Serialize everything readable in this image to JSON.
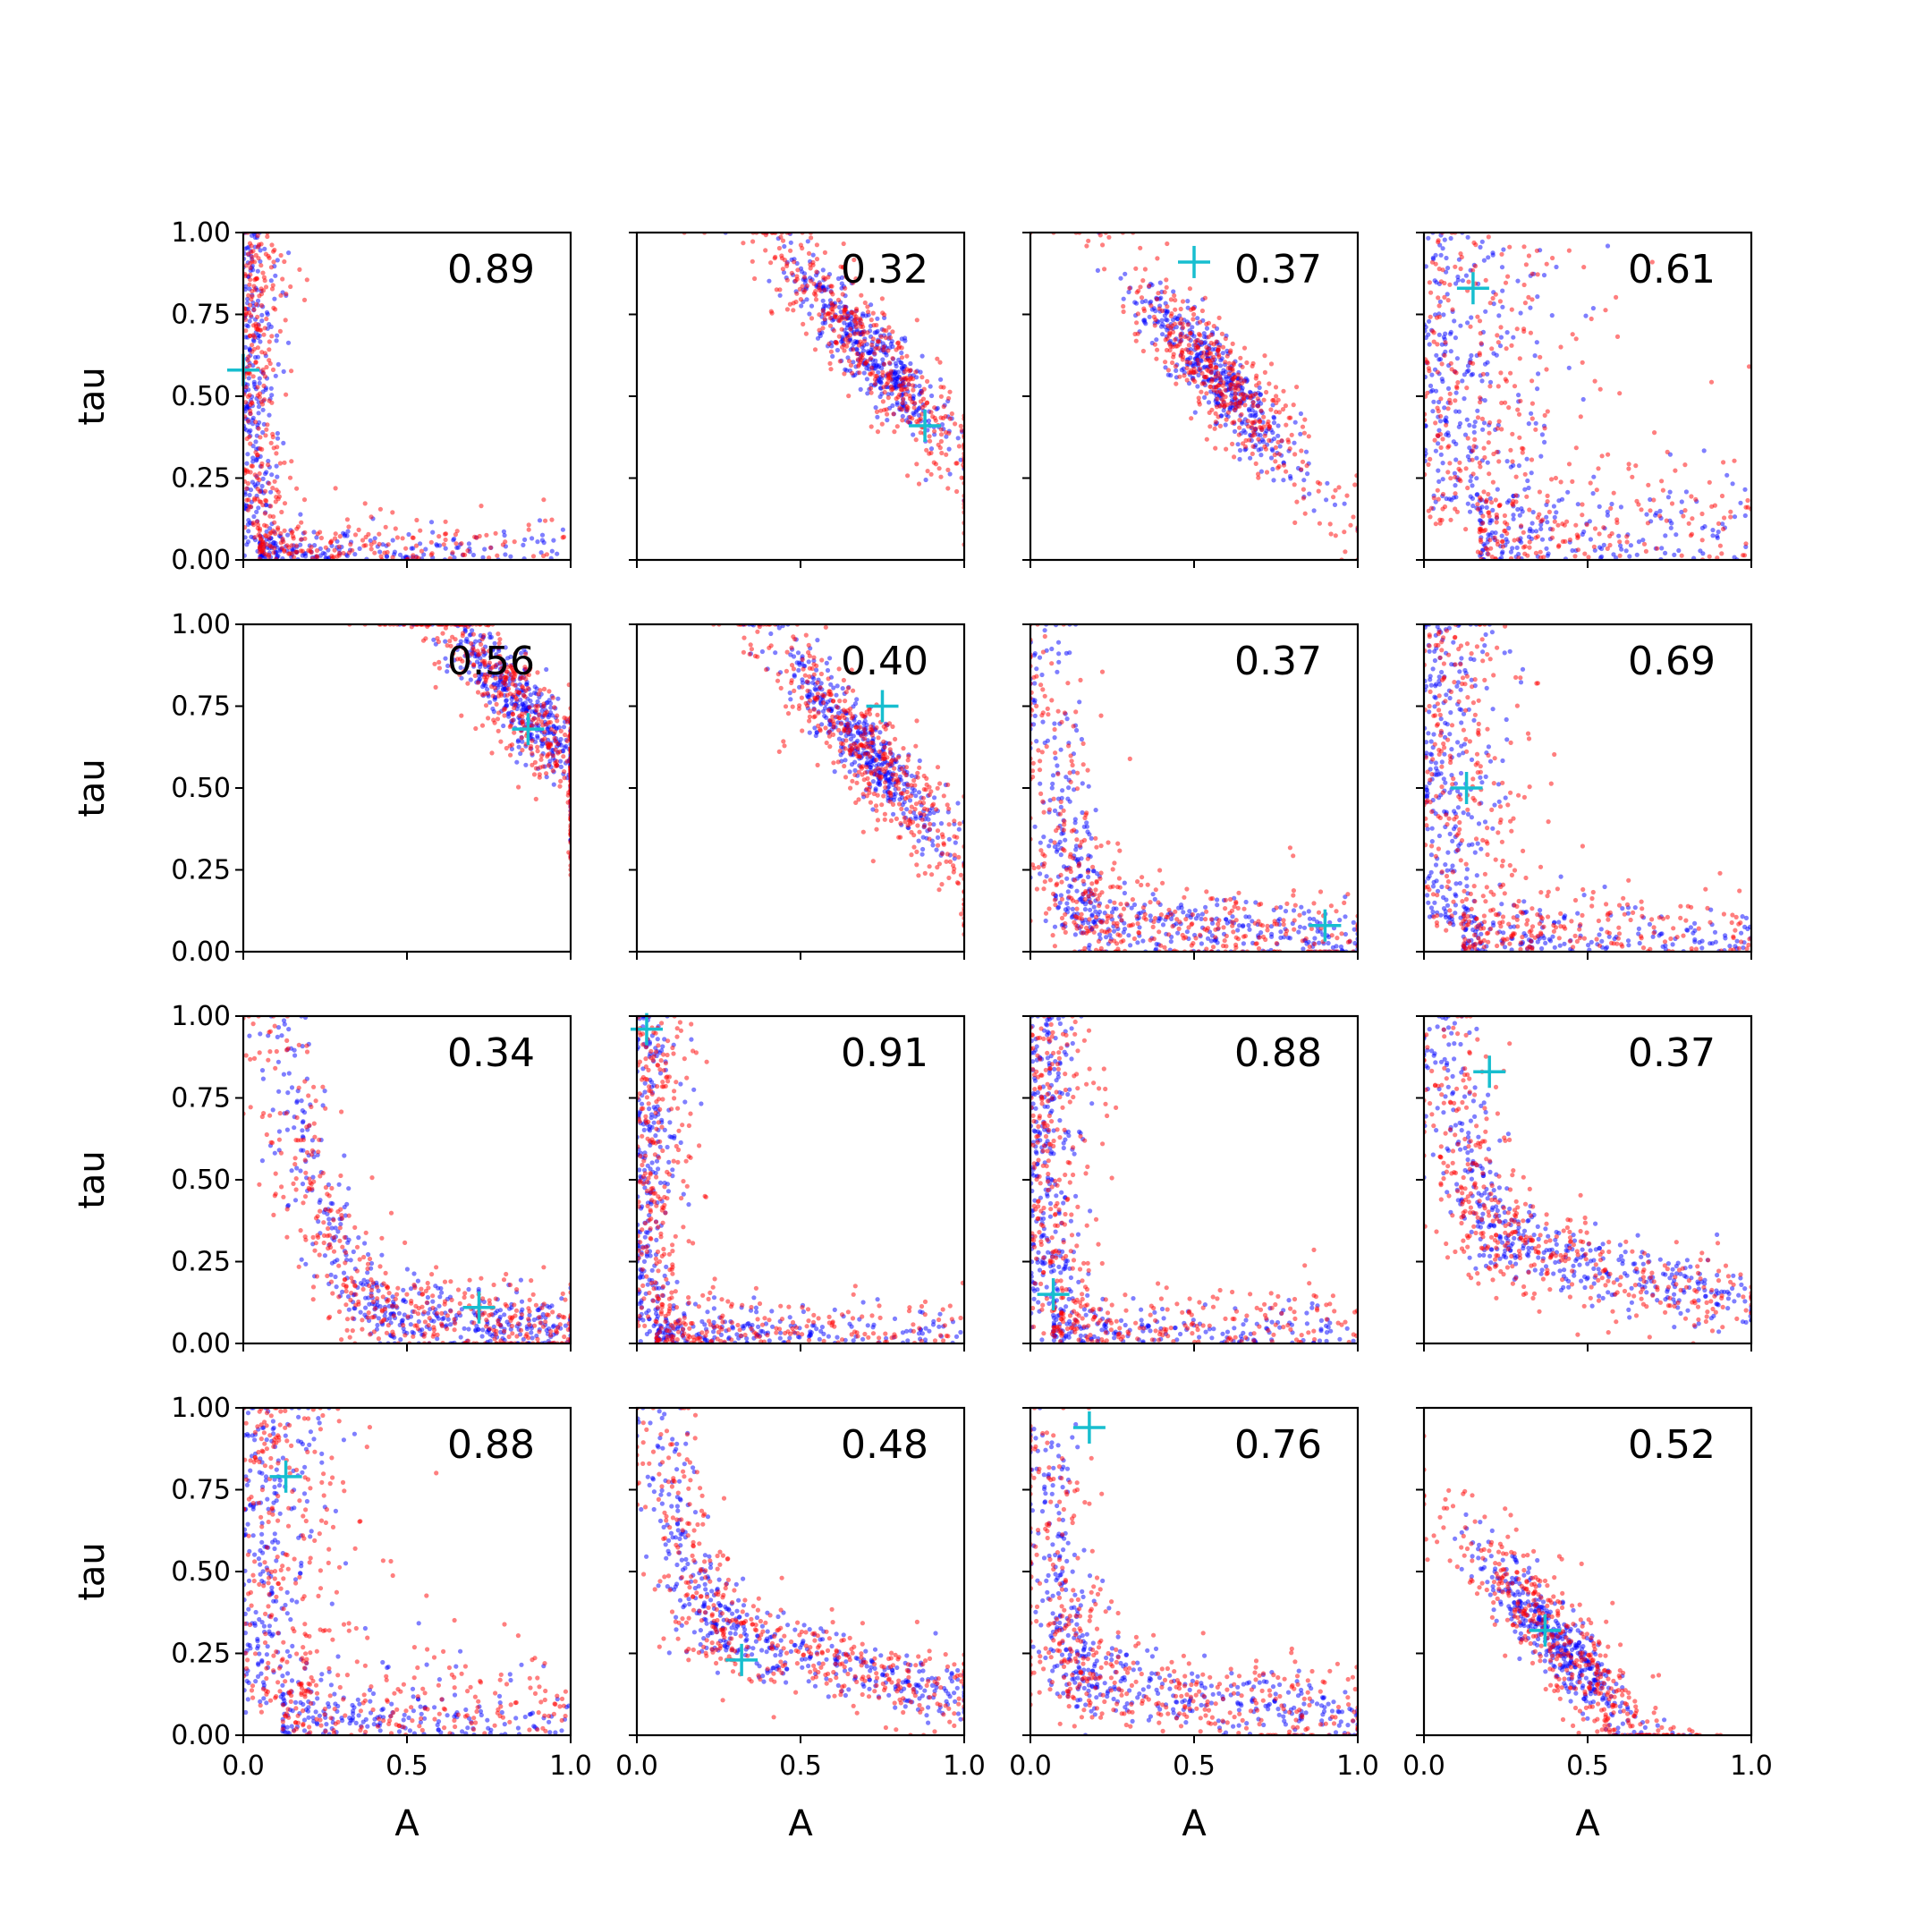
{
  "chart_data": {
    "type": "scatter",
    "layout": "4x4 grid of panels, shared x and y axes",
    "xlabel": "A",
    "ylabel": "tau",
    "xlim": [
      0,
      1
    ],
    "ylim": [
      0,
      1
    ],
    "x_ticks": [
      "0.0",
      "0.5",
      "1.0"
    ],
    "y_ticks": [
      "0.00",
      "0.25",
      "0.50",
      "0.75",
      "1.00"
    ],
    "grid": false,
    "legend": "none",
    "series_colors": {
      "blue": "#0000ff",
      "red": "#ff0000",
      "marker": "#17becf"
    },
    "panels": [
      {
        "annotation": "0.89",
        "shape": "L",
        "pivot": [
          0.05,
          0.05
        ],
        "true": [
          0.0,
          0.58
        ]
      },
      {
        "annotation": "0.32",
        "shape": "band",
        "center": [
          0.72,
          0.63
        ],
        "true": [
          0.88,
          0.41
        ]
      },
      {
        "annotation": "0.37",
        "shape": "band",
        "center": [
          0.58,
          0.55
        ],
        "true": [
          0.5,
          0.91
        ]
      },
      {
        "annotation": "0.61",
        "shape": "L",
        "pivot": [
          0.17,
          0.12
        ],
        "true": [
          0.15,
          0.83
        ]
      },
      {
        "annotation": "0.56",
        "shape": "band",
        "center": [
          0.85,
          0.75
        ],
        "true": [
          0.87,
          0.68
        ]
      },
      {
        "annotation": "0.40",
        "shape": "band",
        "center": [
          0.7,
          0.62
        ],
        "true": [
          0.75,
          0.75
        ]
      },
      {
        "annotation": "0.37",
        "shape": "curve",
        "pivot": [
          0.18,
          0.1
        ],
        "true": [
          0.9,
          0.08
        ]
      },
      {
        "annotation": "0.69",
        "shape": "L",
        "pivot": [
          0.12,
          0.07
        ],
        "true": [
          0.13,
          0.5
        ]
      },
      {
        "annotation": "0.34",
        "shape": "curve",
        "pivot": [
          0.45,
          0.1
        ],
        "true": [
          0.72,
          0.11
        ]
      },
      {
        "annotation": "0.91",
        "shape": "L",
        "pivot": [
          0.06,
          0.05
        ],
        "true": [
          0.03,
          0.96
        ]
      },
      {
        "annotation": "0.88",
        "shape": "L",
        "pivot": [
          0.07,
          0.06
        ],
        "true": [
          0.07,
          0.15
        ]
      },
      {
        "annotation": "0.37",
        "shape": "curve",
        "pivot": [
          0.25,
          0.3
        ],
        "true": [
          0.2,
          0.83
        ]
      },
      {
        "annotation": "0.88",
        "shape": "L",
        "pivot": [
          0.12,
          0.1
        ],
        "true": [
          0.13,
          0.79
        ]
      },
      {
        "annotation": "0.48",
        "shape": "curve",
        "pivot": [
          0.3,
          0.3
        ],
        "true": [
          0.32,
          0.23
        ]
      },
      {
        "annotation": "0.76",
        "shape": "curve",
        "pivot": [
          0.18,
          0.15
        ],
        "true": [
          0.18,
          0.94
        ]
      },
      {
        "annotation": "0.52",
        "shape": "band",
        "center": [
          0.42,
          0.28
        ],
        "true": [
          0.37,
          0.32
        ]
      }
    ]
  }
}
